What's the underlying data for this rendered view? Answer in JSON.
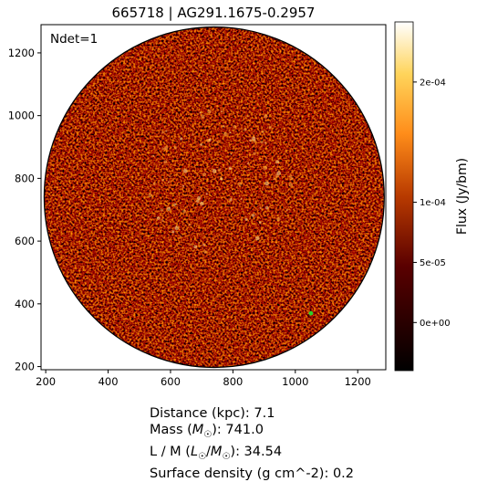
{
  "chart_data": {
    "type": "heatmap",
    "title": "665718 | AG291.1675-0.2957",
    "annotation": "Ndet=1",
    "x_ticks": [
      200,
      400,
      600,
      800,
      1000,
      1200
    ],
    "y_ticks": [
      200,
      400,
      600,
      800,
      1000,
      1200
    ],
    "xlim": [
      185,
      1290
    ],
    "ylim": [
      190,
      1290
    ],
    "field": {
      "shape": "circle",
      "center": [
        740,
        740
      ],
      "radius": 545
    },
    "colorbar": {
      "label": "Flux (Jy/bm)",
      "range": [
        -4e-05,
        0.00025
      ],
      "ticks": [
        0,
        5e-05,
        0.0001,
        0.0002
      ],
      "tick_labels": [
        "0e+00",
        "5e-05",
        "1e-04",
        "2e-04"
      ],
      "colormap": "afmhot"
    },
    "marker": {
      "x": 1050,
      "y": 370,
      "color": "#2bd12b"
    }
  },
  "info": {
    "distance": "Distance (kpc): 7.1",
    "mass_prefix": "Mass (",
    "mass_sym": "M",
    "mass_suffix": "): 741.0",
    "lm_prefix": "L / M (",
    "lm_sym1": "L",
    "lm_mid": "/",
    "lm_sym2": "M",
    "lm_suffix": "): 34.54",
    "surface": "Surface density (g cm^-2): 0.2",
    "sun_symbol": "☉"
  }
}
